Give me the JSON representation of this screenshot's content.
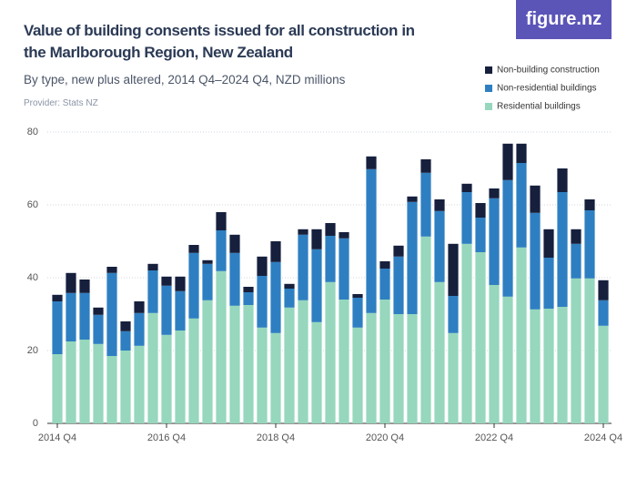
{
  "chart_data": {
    "type": "stacked-bar",
    "title": "Value of building consents issued for all construction in the Marlborough Region, New Zealand",
    "subtitle": "By type, new plus altered, 2014 Q4–2024 Q4, NZD millions",
    "provider": "Provider: Stats NZ",
    "logo": "figure.nz",
    "categories": [
      "2014 Q4",
      null,
      null,
      null,
      null,
      null,
      null,
      null,
      "2016 Q4",
      null,
      null,
      null,
      null,
      null,
      null,
      null,
      "2018 Q4",
      null,
      null,
      null,
      null,
      null,
      null,
      null,
      "2020 Q4",
      null,
      null,
      null,
      null,
      null,
      null,
      null,
      "2022 Q4",
      null,
      null,
      null,
      null,
      null,
      null,
      null,
      "2024 Q4"
    ],
    "series": [
      {
        "name": "Residential buildings",
        "color": "#96d7bd",
        "values": [
          19,
          22.5,
          23,
          21.8,
          18.5,
          20,
          21.3,
          30.3,
          24.3,
          25.5,
          28.8,
          33.8,
          41.8,
          32.3,
          32.5,
          26.3,
          24.8,
          31.8,
          33.8,
          27.8,
          38.8,
          34,
          26.3,
          30.3,
          34,
          30,
          30,
          51.3,
          38.8,
          24.8,
          49.3,
          47,
          38,
          34.8,
          48.3,
          31.3,
          31.5,
          32,
          39.8,
          39.8,
          26.8
        ]
      },
      {
        "name": "Non-residential buildings",
        "color": "#2e7fc1",
        "values": [
          14.5,
          13.3,
          12.8,
          8,
          22.8,
          5.3,
          9,
          11.7,
          13.5,
          10.8,
          18,
          10,
          11.2,
          14.5,
          3.5,
          14.2,
          19.5,
          5.2,
          18,
          20,
          12.7,
          16.8,
          8.2,
          39.5,
          8.5,
          15.8,
          30.8,
          17.5,
          19.5,
          10.2,
          14.2,
          9.5,
          23.8,
          32,
          23.2,
          26.5,
          14,
          31.5,
          9.5,
          18.7,
          7
        ]
      },
      {
        "name": "Non-building construction",
        "color": "#16203d",
        "values": [
          1.8,
          5.5,
          3.7,
          2,
          1.7,
          2.7,
          3.2,
          1.8,
          2.5,
          4,
          2.2,
          1,
          5,
          5,
          1.5,
          5.3,
          5.7,
          1.3,
          1.5,
          5.5,
          3.5,
          1.7,
          1,
          3.5,
          2,
          3,
          1.5,
          3.7,
          3.2,
          14.3,
          2.3,
          4,
          2.7,
          10,
          5.3,
          7.5,
          7.8,
          6.5,
          4,
          3,
          5.5
        ]
      }
    ],
    "ylim": [
      0,
      80
    ],
    "yticks": [
      0,
      20,
      40,
      60,
      80
    ],
    "grid": true
  }
}
